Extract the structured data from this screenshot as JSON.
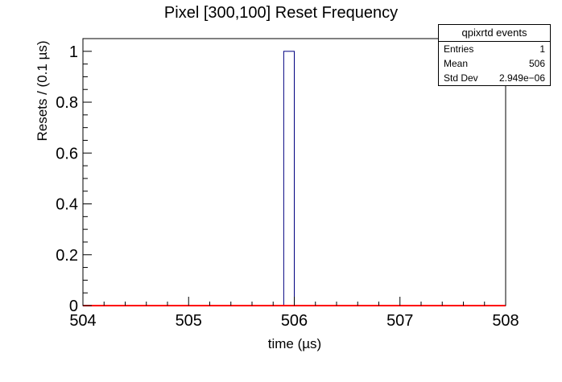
{
  "chart_data": {
    "type": "bar",
    "title": "Pixel [300,100] Reset Frequency",
    "xlabel": "time (µs)",
    "ylabel": "Resets / (0.1 µs)",
    "xlim": [
      504,
      508
    ],
    "ylim": [
      0,
      1.05
    ],
    "x_ticks": [
      "504",
      "505",
      "506",
      "507",
      "508"
    ],
    "y_ticks": [
      "0",
      "0.2",
      "0.4",
      "0.6",
      "0.8",
      "1"
    ],
    "bin_width": 0.1,
    "bins": [
      {
        "x_start": 505.9,
        "x_end": 506.0,
        "value": 1
      }
    ],
    "baseline": {
      "value": 0
    },
    "colors": {
      "histogram": "#000080",
      "baseline": "#ff0000",
      "axes": "#000000"
    }
  },
  "stats": {
    "title": "qpixrtd events",
    "rows": [
      {
        "label": "Entries",
        "value": "1"
      },
      {
        "label": "Mean",
        "value": "506"
      },
      {
        "label": "Std Dev",
        "value": "2.949e−06"
      }
    ]
  }
}
